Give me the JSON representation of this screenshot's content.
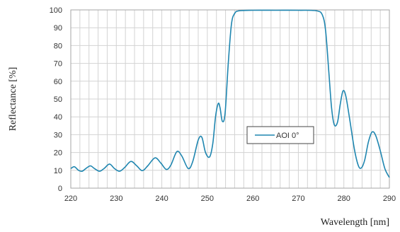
{
  "chart_data": {
    "type": "line",
    "title": "",
    "xlabel": "Wavelength [nm]",
    "ylabel": "Reflectance [%]",
    "xlim": [
      220,
      290
    ],
    "ylim": [
      0,
      100
    ],
    "x_ticks": [
      220,
      230,
      240,
      250,
      260,
      270,
      280,
      290
    ],
    "y_ticks": [
      0,
      10,
      20,
      30,
      40,
      50,
      60,
      70,
      80,
      90,
      100
    ],
    "x_tick_labels": [
      "220",
      "230",
      "240",
      "250",
      "260",
      "270",
      "280",
      "290"
    ],
    "y_tick_labels": [
      "0",
      "10",
      "20",
      "30",
      "40",
      "50",
      "60",
      "70",
      "80",
      "90",
      "100"
    ],
    "grid": true,
    "legend_position": "center-right",
    "series": [
      {
        "name": "AOI 0°",
        "color": "#1f86b0",
        "points": [
          [
            220,
            11
          ],
          [
            220.8,
            12
          ],
          [
            221.7,
            10
          ],
          [
            222.5,
            9.5
          ],
          [
            223.3,
            11
          ],
          [
            224.3,
            12.5
          ],
          [
            225.2,
            11
          ],
          [
            226.3,
            9.5
          ],
          [
            227.3,
            11
          ],
          [
            228.5,
            13.5
          ],
          [
            229.6,
            11
          ],
          [
            230.7,
            9.5
          ],
          [
            231.8,
            11.5
          ],
          [
            233.2,
            15
          ],
          [
            234.5,
            12.5
          ],
          [
            235.7,
            9.8
          ],
          [
            236.9,
            12.5
          ],
          [
            238.5,
            17
          ],
          [
            239.8,
            14
          ],
          [
            241,
            10.5
          ],
          [
            242,
            13
          ],
          [
            243.3,
            20.5
          ],
          [
            244.4,
            18
          ],
          [
            245.8,
            11
          ],
          [
            246.8,
            15
          ],
          [
            248,
            27
          ],
          [
            248.8,
            28.5
          ],
          [
            249.6,
            20
          ],
          [
            250.5,
            17.5
          ],
          [
            251.2,
            25
          ],
          [
            251.8,
            40
          ],
          [
            252.4,
            47.5
          ],
          [
            252.8,
            45
          ],
          [
            253.3,
            37.5
          ],
          [
            253.9,
            42
          ],
          [
            254.6,
            70
          ],
          [
            255.3,
            92
          ],
          [
            256,
            98
          ],
          [
            257,
            99.5
          ],
          [
            260,
            99.8
          ],
          [
            265,
            99.8
          ],
          [
            270,
            99.8
          ],
          [
            274,
            99.5
          ],
          [
            275.3,
            97
          ],
          [
            276,
            88
          ],
          [
            276.7,
            65
          ],
          [
            277.3,
            45
          ],
          [
            277.9,
            35.5
          ],
          [
            278.6,
            37
          ],
          [
            279.2,
            47
          ],
          [
            279.8,
            54.5
          ],
          [
            280.4,
            52
          ],
          [
            281.2,
            40
          ],
          [
            282.3,
            22
          ],
          [
            283.2,
            12.5
          ],
          [
            283.9,
            11.5
          ],
          [
            284.6,
            16
          ],
          [
            285.4,
            26
          ],
          [
            286.2,
            31.5
          ],
          [
            287,
            29.5
          ],
          [
            288,
            21
          ],
          [
            289,
            11
          ],
          [
            290,
            6
          ]
        ]
      }
    ]
  }
}
